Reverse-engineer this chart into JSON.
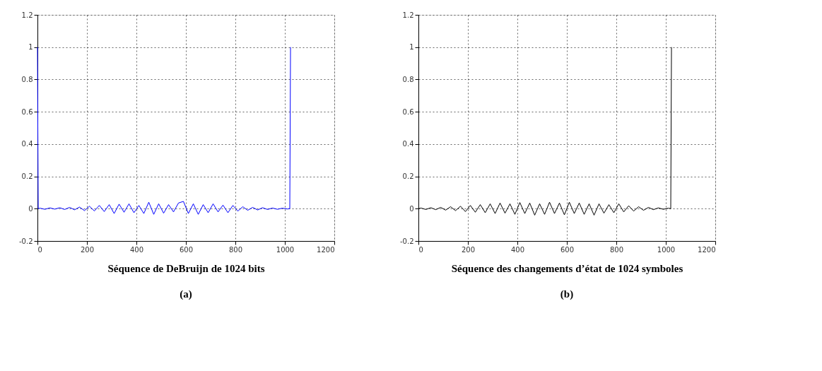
{
  "chart_data": [
    {
      "type": "line",
      "xlabel": "Séquence de DeBruijn de 1024 bits",
      "annotations": [
        "(a)"
      ],
      "xlim": [
        0,
        1200
      ],
      "ylim": [
        -0.2,
        1.2
      ],
      "xticks": [
        0,
        200,
        400,
        600,
        800,
        1000,
        1200
      ],
      "yticks": [
        -0.2,
        0,
        0.2,
        0.4,
        0.6,
        0.8,
        1,
        1.2
      ],
      "grid": true,
      "series": [
        {
          "color": "#0000ff",
          "x": [
            0,
            3,
            10,
            30,
            50,
            70,
            90,
            110,
            130,
            150,
            170,
            190,
            210,
            230,
            250,
            270,
            290,
            310,
            330,
            350,
            370,
            390,
            410,
            430,
            450,
            470,
            490,
            510,
            530,
            550,
            570,
            590,
            610,
            630,
            650,
            670,
            690,
            710,
            730,
            750,
            770,
            790,
            810,
            830,
            850,
            870,
            890,
            910,
            930,
            950,
            970,
            990,
            1010,
            1020,
            1023
          ],
          "values": [
            1,
            0,
            0.003,
            -0.004,
            0.005,
            -0.003,
            0.006,
            -0.005,
            0.008,
            -0.007,
            0.01,
            -0.012,
            0.015,
            -0.014,
            0.02,
            -0.018,
            0.025,
            -0.03,
            0.028,
            -0.022,
            0.03,
            -0.025,
            0.02,
            -0.03,
            0.04,
            -0.035,
            0.03,
            -0.028,
            0.025,
            -0.02,
            0.035,
            0.045,
            -0.03,
            0.03,
            -0.035,
            0.025,
            -0.025,
            0.03,
            -0.02,
            0.022,
            -0.025,
            0.02,
            -0.015,
            0.012,
            -0.01,
            0.008,
            -0.008,
            0.006,
            -0.005,
            0.004,
            -0.004,
            0.003,
            -0.002,
            0,
            1
          ]
        }
      ]
    },
    {
      "type": "line",
      "xlabel": "Séquence des changements d’état de 1024 symboles",
      "annotations": [
        "(b)"
      ],
      "xlim": [
        0,
        1200
      ],
      "ylim": [
        -0.2,
        1.2
      ],
      "xticks": [
        0,
        200,
        400,
        600,
        800,
        1000,
        1200
      ],
      "yticks": [
        -0.2,
        0,
        0.2,
        0.4,
        0.6,
        0.8,
        1,
        1.2
      ],
      "grid": true,
      "series": [
        {
          "color": "#000000",
          "x": [
            0,
            10,
            30,
            50,
            70,
            90,
            110,
            130,
            150,
            170,
            190,
            210,
            230,
            250,
            270,
            290,
            310,
            330,
            350,
            370,
            390,
            410,
            430,
            450,
            470,
            490,
            510,
            530,
            550,
            570,
            590,
            610,
            630,
            650,
            670,
            690,
            710,
            730,
            750,
            770,
            790,
            810,
            830,
            850,
            870,
            890,
            910,
            930,
            950,
            970,
            990,
            1010,
            1020,
            1023
          ],
          "values": [
            0,
            0.004,
            -0.005,
            0.006,
            -0.006,
            0.008,
            -0.009,
            0.012,
            -0.012,
            0.015,
            -0.018,
            0.02,
            -0.022,
            0.025,
            -0.025,
            0.03,
            -0.03,
            0.035,
            -0.028,
            0.03,
            -0.035,
            0.038,
            -0.03,
            0.035,
            -0.04,
            0.03,
            -0.035,
            0.04,
            -0.03,
            0.035,
            -0.038,
            0.04,
            -0.03,
            0.035,
            -0.035,
            0.03,
            -0.04,
            0.03,
            -0.028,
            0.025,
            -0.025,
            0.03,
            -0.02,
            0.018,
            -0.015,
            0.012,
            -0.01,
            0.008,
            -0.006,
            0.005,
            -0.004,
            0.003,
            0,
            1
          ]
        }
      ]
    }
  ]
}
